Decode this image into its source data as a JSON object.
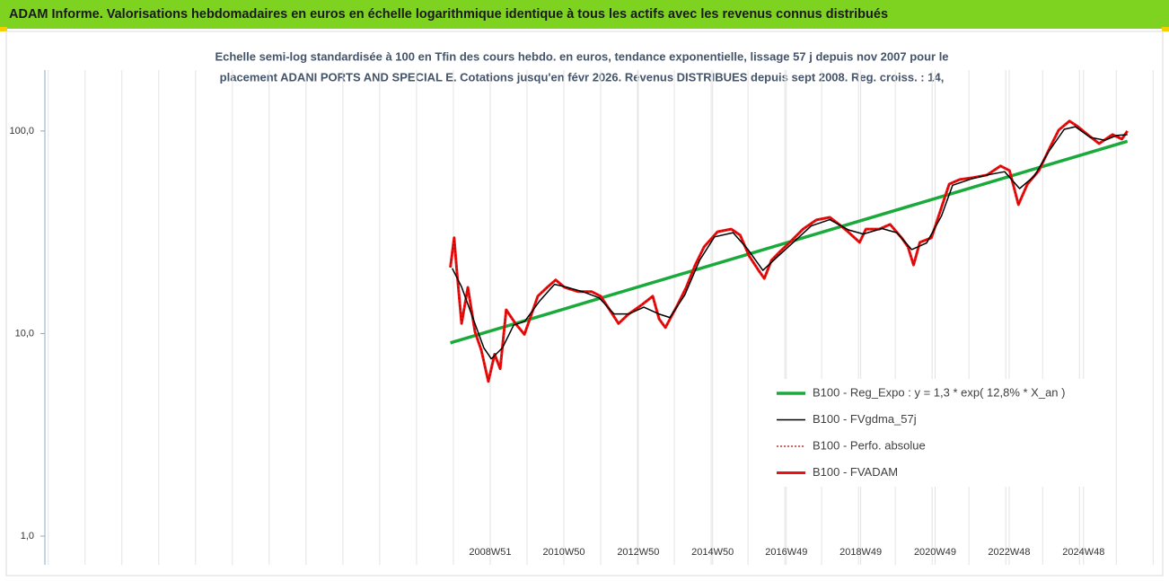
{
  "chart_data": {
    "type": "line",
    "title": "ADAM Informe. Valorisations hebdomadaires en euros en échelle logarithmique identique à tous les actifs avec les revenus connus distribués",
    "subtitle": [
      "Echelle semi-log standardisée à 100 en Tfin des cours hebdo. en euros, tendance exponentielle, lissage 57 j depuis nov 2007 pour le",
      "placement ADANI PORTS AND SPECIAL E. Cotations jusqu'en févr 2026. Revenus DISTRIBUES depuis sept 2008. Reg. croiss. : 14,"
    ],
    "log_scale": true,
    "xgrid": true,
    "legend": "lower-right",
    "xlim": [
      1997,
      2027
    ],
    "xticks": [
      {
        "value": 2008.97,
        "label": "2008W51"
      },
      {
        "value": 2010.95,
        "label": "2010W50"
      },
      {
        "value": 2012.95,
        "label": "2012W50"
      },
      {
        "value": 2014.95,
        "label": "2014W50"
      },
      {
        "value": 2016.93,
        "label": "2016W49"
      },
      {
        "value": 2018.93,
        "label": "2018W49"
      },
      {
        "value": 2020.93,
        "label": "2020W49"
      },
      {
        "value": 2022.92,
        "label": "2022W48"
      },
      {
        "value": 2024.92,
        "label": "2024W48"
      }
    ],
    "ylim": [
      1,
      200
    ],
    "yticks": [
      {
        "value": 1,
        "label": "1,0"
      },
      {
        "value": 10,
        "label": "10,0"
      },
      {
        "value": 100,
        "label": "100,0"
      }
    ],
    "series": [
      {
        "name": "B100 - Reg_Expo : y = 1,3 * exp( 12,8% *  X_an )",
        "color": "#1aaa3c",
        "width": 3.5,
        "style": "solid",
        "x": [
          2007.9,
          2026.1
        ],
        "values": [
          9.0,
          89
        ]
      },
      {
        "name": "B100 - FVgdma_57j",
        "color": "#000000",
        "width": 1.5,
        "style": "solid",
        "x": [
          2007.95,
          2008.2,
          2008.5,
          2008.8,
          2009.0,
          2009.3,
          2009.6,
          2009.9,
          2010.3,
          2010.7,
          2011.0,
          2011.5,
          2011.9,
          2012.3,
          2012.7,
          2013.1,
          2013.5,
          2013.8,
          2014.2,
          2014.6,
          2015.0,
          2015.5,
          2015.9,
          2016.3,
          2016.7,
          2017.1,
          2017.6,
          2018.1,
          2018.6,
          2019.0,
          2019.5,
          2019.9,
          2020.3,
          2020.7,
          2021.1,
          2021.4,
          2021.9,
          2022.4,
          2022.8,
          2023.2,
          2023.6,
          2024.0,
          2024.4,
          2024.7,
          2025.1,
          2025.5,
          2025.8,
          2026.1
        ],
        "values": [
          21,
          17,
          12,
          8.5,
          7.5,
          8.5,
          11,
          11.5,
          14.5,
          17.5,
          17,
          16,
          15,
          12.5,
          12.5,
          13.5,
          12.5,
          12,
          15.5,
          23,
          30,
          31.5,
          26,
          20.5,
          24,
          28,
          34,
          36.5,
          32.5,
          31,
          33,
          31.5,
          26,
          28,
          38,
          54,
          58,
          61,
          63,
          52,
          60,
          80,
          102,
          105,
          93,
          90,
          95,
          96
        ]
      },
      {
        "name": "B100 - Perfo. absolue",
        "color": "#c00000",
        "width": 1.2,
        "style": "dotted",
        "x": [
          2007.9,
          2008.0,
          2008.07,
          2008.2,
          2008.37,
          2008.56,
          2008.73,
          2008.92,
          2009.09,
          2009.24,
          2009.4,
          2009.65,
          2009.89,
          2010.25,
          2010.5,
          2010.73,
          2010.97,
          2011.34,
          2011.7,
          2011.94,
          2012.18,
          2012.42,
          2012.67,
          2013.03,
          2013.34,
          2013.51,
          2013.68,
          2014.0,
          2014.24,
          2014.48,
          2014.72,
          2015.08,
          2015.45,
          2015.69,
          2015.93,
          2016.17,
          2016.34,
          2016.53,
          2016.77,
          2017.02,
          2017.38,
          2017.74,
          2018.1,
          2018.35,
          2018.59,
          2018.9,
          2019.07,
          2019.43,
          2019.72,
          2020.03,
          2020.2,
          2020.35,
          2020.52,
          2020.83,
          2021.07,
          2021.31,
          2021.6,
          2021.96,
          2022.33,
          2022.69,
          2022.93,
          2023.17,
          2023.41,
          2023.72,
          2024.01,
          2024.25,
          2024.54,
          2024.74,
          2025.03,
          2025.34,
          2025.7,
          2025.95,
          2026.1
        ],
        "values": [
          21.2,
          29.7,
          20.7,
          11.2,
          16.9,
          10.2,
          8.3,
          5.8,
          7.9,
          6.7,
          13.1,
          11.2,
          9.9,
          15.3,
          16.9,
          18.4,
          16.9,
          16.1,
          16.1,
          15.3,
          13.1,
          11.2,
          12.4,
          13.8,
          15.3,
          11.8,
          10.7,
          13.8,
          16.9,
          21.8,
          26.8,
          31.8,
          32.8,
          30.6,
          24.2,
          20.7,
          18.7,
          23,
          25.5,
          28.2,
          32.8,
          36.4,
          37.5,
          34.6,
          31.8,
          28.2,
          32.8,
          32.8,
          34.6,
          29.7,
          26.8,
          21.8,
          28.2,
          29.7,
          40.3,
          54.7,
          57.7,
          58.9,
          60.7,
          67.2,
          63.8,
          43.3,
          54.7,
          63.8,
          82.4,
          101,
          112,
          106,
          96,
          86.7,
          96,
          91.2,
          100
        ]
      },
      {
        "name": "B100 - FVADAM",
        "color": "#ee1111",
        "width": 3,
        "style": "solid",
        "x": [
          2007.9,
          2008.0,
          2008.07,
          2008.2,
          2008.37,
          2008.56,
          2008.73,
          2008.92,
          2009.09,
          2009.24,
          2009.4,
          2009.65,
          2009.89,
          2010.25,
          2010.5,
          2010.73,
          2010.97,
          2011.34,
          2011.7,
          2011.94,
          2012.18,
          2012.42,
          2012.67,
          2013.03,
          2013.34,
          2013.51,
          2013.68,
          2014.0,
          2014.24,
          2014.48,
          2014.72,
          2015.08,
          2015.45,
          2015.69,
          2015.93,
          2016.17,
          2016.34,
          2016.53,
          2016.77,
          2017.02,
          2017.38,
          2017.74,
          2018.1,
          2018.35,
          2018.59,
          2018.9,
          2019.07,
          2019.43,
          2019.72,
          2020.03,
          2020.2,
          2020.35,
          2020.52,
          2020.83,
          2021.07,
          2021.31,
          2021.6,
          2021.96,
          2022.33,
          2022.69,
          2022.93,
          2023.17,
          2023.41,
          2023.72,
          2024.01,
          2024.25,
          2024.54,
          2024.74,
          2025.03,
          2025.34,
          2025.7,
          2025.95,
          2026.1
        ],
        "values": [
          21.2,
          29.7,
          20.7,
          11.2,
          16.9,
          10.2,
          8.3,
          5.8,
          7.9,
          6.7,
          13.1,
          11.2,
          9.9,
          15.3,
          16.9,
          18.4,
          16.9,
          16.1,
          16.1,
          15.3,
          13.1,
          11.2,
          12.4,
          13.8,
          15.3,
          11.8,
          10.7,
          13.8,
          16.9,
          21.8,
          26.8,
          31.8,
          32.8,
          30.6,
          24.2,
          20.7,
          18.7,
          23,
          25.5,
          28.2,
          32.8,
          36.4,
          37.5,
          34.6,
          31.8,
          28.2,
          32.8,
          32.8,
          34.6,
          29.7,
          26.8,
          21.8,
          28.2,
          29.7,
          40.3,
          54.7,
          57.7,
          58.9,
          60.7,
          67.2,
          63.8,
          43.3,
          54.7,
          63.8,
          82.4,
          101,
          112,
          106,
          96,
          86.7,
          96,
          91.2,
          100
        ]
      }
    ]
  }
}
